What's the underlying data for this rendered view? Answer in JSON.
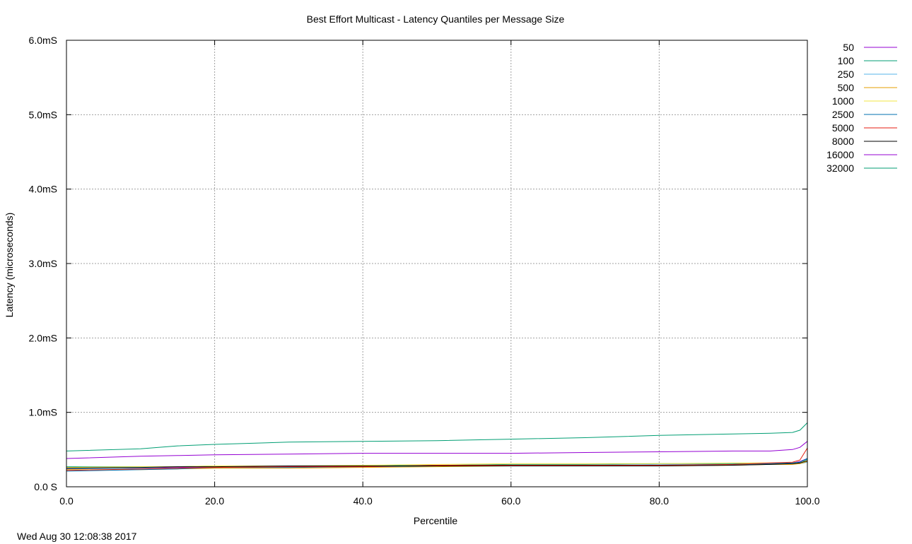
{
  "chart_data": {
    "type": "line",
    "title": "Best Effort Multicast - Latency Quantiles per Message Size",
    "xlabel": "Percentile",
    "ylabel": "Latency (microseconds)",
    "xlim": [
      0,
      100
    ],
    "ylim": [
      0,
      6.0
    ],
    "x_ticks": [
      {
        "value": 0,
        "label": "0.0"
      },
      {
        "value": 20,
        "label": "20.0"
      },
      {
        "value": 40,
        "label": "40.0"
      },
      {
        "value": 60,
        "label": "60.0"
      },
      {
        "value": 80,
        "label": "80.0"
      },
      {
        "value": 100,
        "label": "100.0"
      }
    ],
    "y_ticks": [
      {
        "value": 0,
        "label": "0.0 S"
      },
      {
        "value": 1,
        "label": "1.0mS"
      },
      {
        "value": 2,
        "label": "2.0mS"
      },
      {
        "value": 3,
        "label": "3.0mS"
      },
      {
        "value": 4,
        "label": "4.0mS"
      },
      {
        "value": 5,
        "label": "5.0mS"
      },
      {
        "value": 6,
        "label": "6.0mS"
      }
    ],
    "grid": true,
    "legend_position": "outside-top-right",
    "x": [
      0,
      10,
      15,
      20,
      30,
      40,
      50,
      60,
      70,
      80,
      90,
      95,
      98,
      99,
      100
    ],
    "series": [
      {
        "name": "50",
        "color": "#9400d3",
        "values": [
          0.25,
          0.25,
          0.26,
          0.26,
          0.27,
          0.27,
          0.28,
          0.28,
          0.29,
          0.29,
          0.3,
          0.31,
          0.32,
          0.34,
          0.38
        ]
      },
      {
        "name": "100",
        "color": "#009e73",
        "values": [
          0.27,
          0.27,
          0.27,
          0.28,
          0.28,
          0.28,
          0.29,
          0.3,
          0.3,
          0.31,
          0.31,
          0.31,
          0.32,
          0.33,
          0.37
        ]
      },
      {
        "name": "250",
        "color": "#56b4e9",
        "values": [
          0.24,
          0.25,
          0.25,
          0.26,
          0.26,
          0.27,
          0.28,
          0.29,
          0.29,
          0.3,
          0.3,
          0.3,
          0.31,
          0.31,
          0.33
        ]
      },
      {
        "name": "500",
        "color": "#e69f00",
        "values": [
          0.23,
          0.23,
          0.24,
          0.25,
          0.25,
          0.26,
          0.27,
          0.28,
          0.28,
          0.28,
          0.29,
          0.3,
          0.3,
          0.31,
          0.34
        ]
      },
      {
        "name": "1000",
        "color": "#f0e442",
        "values": [
          0.26,
          0.27,
          0.27,
          0.28,
          0.28,
          0.29,
          0.3,
          0.31,
          0.31,
          0.31,
          0.32,
          0.32,
          0.32,
          0.33,
          0.35
        ]
      },
      {
        "name": "2500",
        "color": "#0072b2",
        "values": [
          0.21,
          0.23,
          0.24,
          0.26,
          0.26,
          0.27,
          0.28,
          0.28,
          0.28,
          0.29,
          0.3,
          0.31,
          0.32,
          0.33,
          0.38
        ]
      },
      {
        "name": "5000",
        "color": "#e51e10",
        "values": [
          0.22,
          0.24,
          0.25,
          0.26,
          0.27,
          0.27,
          0.29,
          0.29,
          0.29,
          0.29,
          0.3,
          0.32,
          0.33,
          0.36,
          0.52
        ]
      },
      {
        "name": "8000",
        "color": "#000000",
        "values": [
          0.25,
          0.26,
          0.27,
          0.27,
          0.28,
          0.28,
          0.28,
          0.28,
          0.28,
          0.28,
          0.29,
          0.3,
          0.31,
          0.32,
          0.35
        ]
      },
      {
        "name": "16000",
        "color": "#9400d3",
        "values": [
          0.38,
          0.41,
          0.42,
          0.43,
          0.44,
          0.45,
          0.45,
          0.45,
          0.46,
          0.47,
          0.48,
          0.48,
          0.5,
          0.53,
          0.61
        ]
      },
      {
        "name": "32000",
        "color": "#009e73",
        "values": [
          0.48,
          0.51,
          0.55,
          0.57,
          0.6,
          0.61,
          0.62,
          0.64,
          0.66,
          0.69,
          0.71,
          0.72,
          0.73,
          0.76,
          0.86
        ]
      }
    ]
  },
  "timestamp": "Wed Aug 30 12:08:38 2017"
}
